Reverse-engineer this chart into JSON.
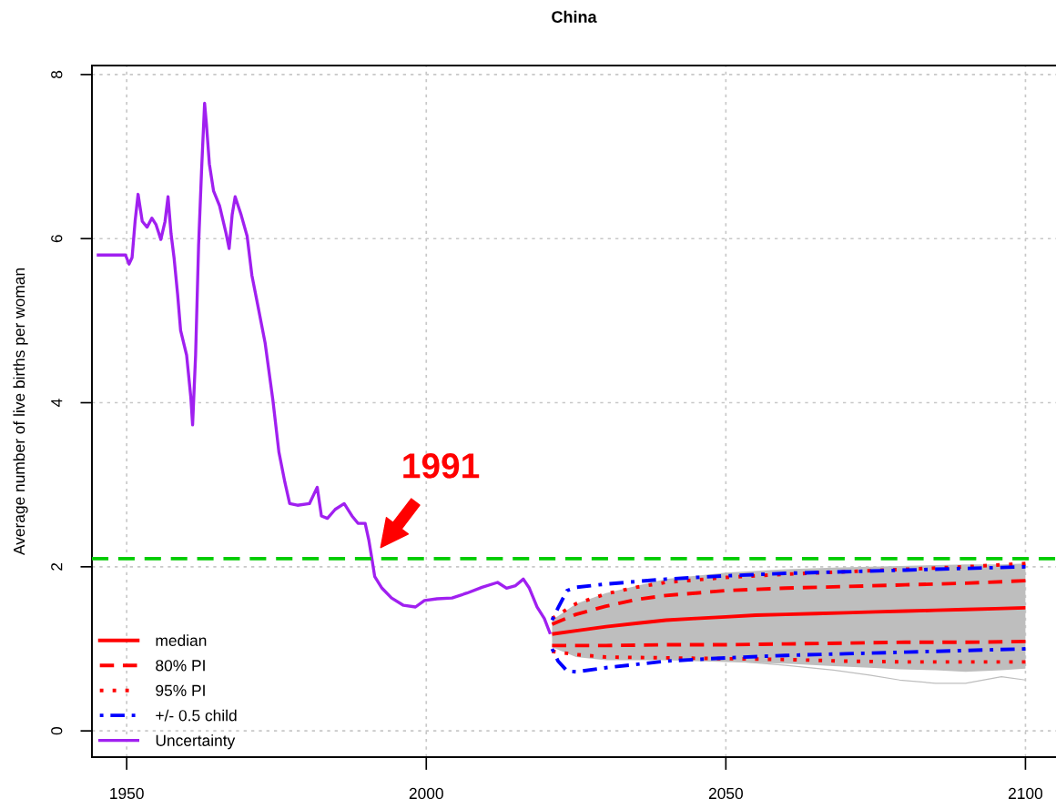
{
  "chart_data": {
    "type": "line",
    "title": "China",
    "ylabel": "Average number of live births per woman",
    "xlim": [
      1944.2,
      2105.1
    ],
    "xticks": [
      1950,
      2000,
      2050,
      2100
    ],
    "ylim": [
      -0.32,
      8.11
    ],
    "yticks": [
      0,
      2,
      4,
      6,
      8
    ],
    "grid": true,
    "legend": "bottom left",
    "ref_lines": [
      {
        "axis": "y",
        "value": 2.1,
        "color": "#00cc00",
        "line_style": "dashed"
      }
    ],
    "annotations": [
      {
        "text": "1991",
        "x": 1991,
        "y": 2.1
      }
    ],
    "series": [
      {
        "color": "#bebebe",
        "x": [
          2021,
          2025,
          2030,
          2040,
          2050,
          2060,
          2068,
          2074,
          2079,
          2085,
          2090,
          2096,
          2100
        ],
        "values": [
          1.15,
          0.95,
          0.88,
          0.92,
          0.86,
          0.8,
          0.74,
          0.68,
          0.62,
          0.58,
          0.58,
          0.66,
          0.62
        ],
        "lower": [
          1.02,
          0.9,
          0.86,
          0.86,
          0.84,
          0.82,
          0.79,
          0.77,
          0.75,
          0.74,
          0.72,
          0.74,
          0.76
        ],
        "upper": [
          1.35,
          1.55,
          1.68,
          1.85,
          1.93,
          1.97,
          1.99,
          2.0,
          2.01,
          2.02,
          2.03,
          2.03,
          2.04
        ]
      },
      {
        "name": "median",
        "color": "#ff0000",
        "x": [
          2021,
          2025,
          2030,
          2035,
          2040,
          2045,
          2050,
          2055,
          2060,
          2065,
          2070,
          2075,
          2080,
          2085,
          2090,
          2095,
          2100
        ],
        "values": [
          1.18,
          1.22,
          1.27,
          1.31,
          1.35,
          1.37,
          1.39,
          1.41,
          1.42,
          1.43,
          1.44,
          1.45,
          1.46,
          1.47,
          1.48,
          1.49,
          1.5
        ]
      },
      {
        "name": "80% PI",
        "color": "#ff0000",
        "line_style": "dashed",
        "x": [
          2021,
          2025,
          2030,
          2035,
          2040,
          2045,
          2050,
          2060,
          2070,
          2080,
          2090,
          2100
        ],
        "values": [
          1.3,
          1.42,
          1.52,
          1.6,
          1.65,
          1.68,
          1.71,
          1.74,
          1.76,
          1.78,
          1.8,
          1.83
        ]
      },
      {
        "color": "#ff0000",
        "line_style": "dashed",
        "x": [
          2021,
          2030,
          2040,
          2050,
          2060,
          2070,
          2080,
          2090,
          2100
        ],
        "values": [
          1.04,
          1.04,
          1.05,
          1.05,
          1.06,
          1.07,
          1.08,
          1.08,
          1.09
        ]
      },
      {
        "name": "95% PI",
        "color": "#ff0000",
        "line_style": "dotted",
        "x": [
          2021,
          2025,
          2030,
          2035,
          2040,
          2050,
          2060,
          2070,
          2080,
          2090,
          2100
        ],
        "values": [
          1.37,
          1.55,
          1.67,
          1.75,
          1.81,
          1.87,
          1.91,
          1.94,
          1.97,
          2.0,
          2.04
        ]
      },
      {
        "color": "#ff0000",
        "line_style": "dotted",
        "x": [
          2021,
          2025,
          2030,
          2040,
          2050,
          2060,
          2070,
          2080,
          2090,
          2100
        ],
        "values": [
          0.97,
          0.93,
          0.9,
          0.89,
          0.88,
          0.87,
          0.85,
          0.84,
          0.84,
          0.84
        ]
      },
      {
        "name": "+/- 0.5 child",
        "color": "#0000ff",
        "line_style": "dashdot",
        "x": [
          2021,
          2022,
          2023.5,
          2025,
          2030,
          2040,
          2050,
          2060,
          2070,
          2080,
          2090,
          2100
        ],
        "values": [
          1.35,
          1.5,
          1.71,
          1.75,
          1.79,
          1.85,
          1.89,
          1.92,
          1.94,
          1.96,
          1.98,
          2.0
        ]
      },
      {
        "color": "#0000ff",
        "line_style": "dashdot",
        "x": [
          2021,
          2022,
          2023.5,
          2025,
          2030,
          2040,
          2050,
          2060,
          2070,
          2080,
          2090,
          2100
        ],
        "values": [
          1.0,
          0.85,
          0.73,
          0.72,
          0.77,
          0.85,
          0.89,
          0.92,
          0.94,
          0.96,
          0.98,
          1.0
        ]
      },
      {
        "name": "Uncertainty",
        "color": "#a020f0",
        "x": [
          1945,
          1949.8,
          1950.4,
          1950.9,
          1951.4,
          1951.9,
          1952.6,
          1953.4,
          1954.2,
          1954.9,
          1955.7,
          1956.4,
          1956.9,
          1957.4,
          1957.9,
          1958.5,
          1959.0,
          1960.0,
          1960.7,
          1961.0,
          1961.5,
          1962.0,
          1962.5,
          1963.0,
          1963.3,
          1963.8,
          1964.5,
          1965.5,
          1966.6,
          1967.1,
          1967.6,
          1968.1,
          1969.1,
          1970.1,
          1970.9,
          1971.9,
          1973.1,
          1974.4,
          1975.4,
          1976.4,
          1977.2,
          1978.5,
          1980.5,
          1981.8,
          1982.5,
          1983.5,
          1984.8,
          1986.3,
          1987.6,
          1988.6,
          1989.8,
          1990.4,
          1990.9,
          1991.4,
          1992.6,
          1994.2,
          1996.2,
          1998.2,
          1999.7,
          2001.8,
          2004.3,
          2006.8,
          2009.3,
          2011.9,
          2013.4,
          2014.9,
          2016.2,
          2017.2,
          2018.5,
          2019.7,
          2020.7
        ],
        "values": [
          5.8,
          5.8,
          5.69,
          5.77,
          6.21,
          6.54,
          6.21,
          6.14,
          6.25,
          6.17,
          5.99,
          6.21,
          6.51,
          6.06,
          5.77,
          5.32,
          4.88,
          4.58,
          4.07,
          3.73,
          4.58,
          5.92,
          6.84,
          7.65,
          7.4,
          6.91,
          6.58,
          6.4,
          6.06,
          5.88,
          6.29,
          6.51,
          6.29,
          6.03,
          5.55,
          5.18,
          4.73,
          4.03,
          3.4,
          3.03,
          2.77,
          2.75,
          2.77,
          2.97,
          2.62,
          2.59,
          2.7,
          2.77,
          2.62,
          2.53,
          2.53,
          2.33,
          2.11,
          1.88,
          1.74,
          1.62,
          1.53,
          1.51,
          1.59,
          1.61,
          1.62,
          1.68,
          1.75,
          1.81,
          1.74,
          1.77,
          1.85,
          1.74,
          1.51,
          1.37,
          1.18
        ]
      }
    ]
  }
}
